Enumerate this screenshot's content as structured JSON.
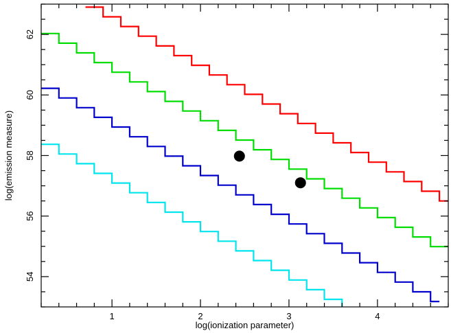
{
  "chart_data": {
    "type": "line",
    "title": "",
    "xlabel": "log(ionization parameter)",
    "ylabel": "log(emission measure)",
    "xlim": [
      0.2,
      4.8
    ],
    "ylim": [
      53.0,
      63.0
    ],
    "xticks": [
      1,
      2,
      3,
      4
    ],
    "xtick_labels": [
      "1",
      "2",
      "3",
      "4"
    ],
    "yticks": [
      54,
      56,
      58,
      60,
      62
    ],
    "ytick_labels": [
      "54",
      "56",
      "58",
      "60",
      "62"
    ],
    "grid": false,
    "legend": "none",
    "step_dx": 0.2,
    "step_dy": -0.32,
    "series": [
      {
        "color": "#ff0000",
        "x_start": 0.7,
        "y_start": 62.9,
        "x_end": 4.8
      },
      {
        "color": "#00dd00",
        "x_start": 0.2,
        "y_start": 62.03,
        "x_end": 4.8
      },
      {
        "color": "#0000cc",
        "x_start": 0.2,
        "y_start": 60.22,
        "x_end": 4.7
      },
      {
        "color": "#00e5ee",
        "x_start": 0.2,
        "y_start": 58.37,
        "x_end": 3.65
      }
    ],
    "points": [
      {
        "x": 2.44,
        "y": 57.98
      },
      {
        "x": 3.13,
        "y": 57.1
      }
    ]
  }
}
